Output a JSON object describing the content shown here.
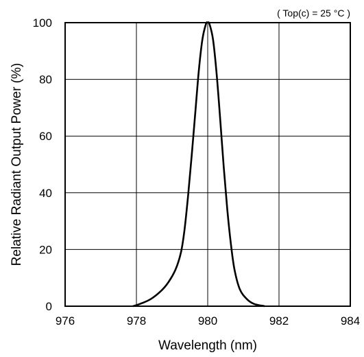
{
  "chart_data": {
    "type": "line",
    "title": "",
    "annotation": "( Top(c) = 25 °C )",
    "xlabel": "Wavelength (nm)",
    "ylabel": "Relative Radiant Output Power (%)",
    "xlim": [
      976,
      984
    ],
    "ylim": [
      0,
      100
    ],
    "x_ticks": [
      976,
      978,
      980,
      982,
      984
    ],
    "y_ticks": [
      0,
      20,
      40,
      60,
      80,
      100
    ],
    "grid": true,
    "series": [
      {
        "color": "#000000",
        "x": [
          977.9,
          978.1,
          978.4,
          978.7,
          978.9,
          979.1,
          979.25,
          979.35,
          979.45,
          979.55,
          979.65,
          979.75,
          979.85,
          979.95,
          980.0,
          980.05,
          980.15,
          980.25,
          980.35,
          980.45,
          980.55,
          980.65,
          980.75,
          980.9,
          981.1,
          981.3,
          981.6
        ],
        "y": [
          0,
          0.8,
          2.5,
          5.5,
          8.5,
          13,
          19,
          27,
          39,
          53,
          68,
          83,
          94,
          99.5,
          100,
          99.5,
          94,
          82,
          66,
          49,
          34,
          22,
          13,
          6,
          2.5,
          0.8,
          0
        ]
      }
    ]
  }
}
